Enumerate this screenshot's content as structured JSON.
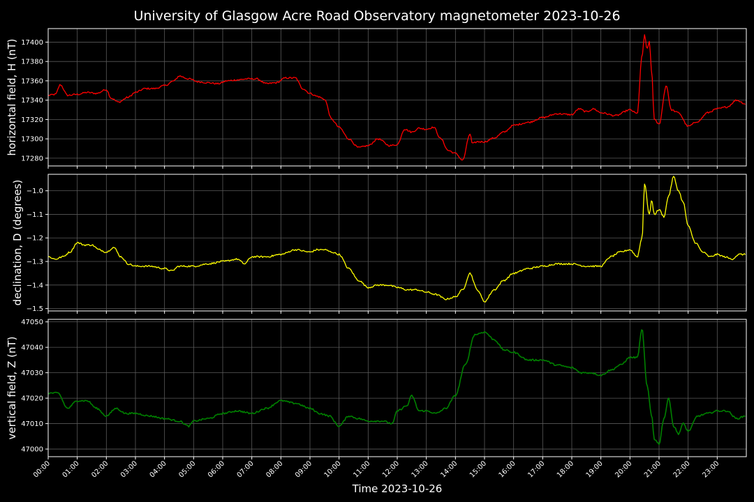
{
  "title": "University of Glasgow Acre Road Observatory magnetometer 2023-10-26",
  "xlabel": "Time 2023-10-26",
  "x_ticks": [
    "00:00",
    "01:00",
    "02:00",
    "03:00",
    "04:00",
    "05:00",
    "06:00",
    "07:00",
    "08:00",
    "09:00",
    "10:00",
    "11:00",
    "12:00",
    "13:00",
    "14:00",
    "15:00",
    "16:00",
    "17:00",
    "18:00",
    "19:00",
    "20:00",
    "21:00",
    "22:00",
    "23:00"
  ],
  "colors": {
    "background": "#000000",
    "grid": "#5a5a5a",
    "axes": "#ffffff",
    "H": "#ff0000",
    "D": "#ffff00",
    "Z": "#008000"
  },
  "chart_data": [
    {
      "type": "line",
      "ylabel": "horizontal field, H (nT)",
      "ylim": [
        17272,
        17414
      ],
      "yticks": [
        17280,
        17300,
        17320,
        17340,
        17360,
        17380,
        17400
      ],
      "ytick_labels": [
        "17280",
        "17300",
        "17320",
        "17340",
        "17360",
        "17380",
        "17400"
      ],
      "xlim": [
        "00:00",
        "24:00"
      ],
      "grid": true,
      "series": [
        {
          "color": "#ff0000",
          "x": [
            "00:00",
            "00:15",
            "00:25",
            "00:40",
            "01:00",
            "01:20",
            "01:40",
            "02:00",
            "02:10",
            "02:25",
            "02:45",
            "03:00",
            "03:20",
            "03:40",
            "04:00",
            "04:20",
            "04:30",
            "04:50",
            "05:10",
            "05:30",
            "05:50",
            "06:10",
            "06:30",
            "06:50",
            "07:10",
            "07:30",
            "07:50",
            "08:10",
            "08:30",
            "08:45",
            "09:00",
            "09:15",
            "09:30",
            "09:45",
            "10:00",
            "10:20",
            "10:40",
            "11:00",
            "11:20",
            "11:45",
            "12:00",
            "12:15",
            "12:30",
            "12:45",
            "13:00",
            "13:15",
            "13:30",
            "13:45",
            "14:00",
            "14:15",
            "14:30",
            "14:35",
            "14:45",
            "15:00",
            "15:20",
            "15:40",
            "16:00",
            "16:30",
            "17:00",
            "17:30",
            "18:00",
            "18:15",
            "18:30",
            "18:45",
            "19:00",
            "19:30",
            "20:00",
            "20:15",
            "20:25",
            "20:30",
            "20:35",
            "20:40",
            "20:45",
            "20:50",
            "21:00",
            "21:15",
            "21:25",
            "21:40",
            "22:00",
            "22:20",
            "22:40",
            "23:00",
            "23:20",
            "23:40",
            "23:59"
          ],
          "values": [
            17345,
            17346,
            17356,
            17345,
            17346,
            17348,
            17347,
            17351,
            17342,
            17338,
            17343,
            17348,
            17352,
            17352,
            17355,
            17360,
            17365,
            17362,
            17359,
            17358,
            17357,
            17360,
            17361,
            17362,
            17362,
            17357,
            17358,
            17363,
            17363,
            17352,
            17347,
            17344,
            17341,
            17320,
            17312,
            17300,
            17291,
            17293,
            17300,
            17293,
            17294,
            17310,
            17307,
            17311,
            17310,
            17312,
            17300,
            17288,
            17285,
            17278,
            17305,
            17295,
            17297,
            17297,
            17301,
            17307,
            17314,
            17317,
            17322,
            17326,
            17325,
            17331,
            17328,
            17331,
            17327,
            17324,
            17330,
            17326,
            17386,
            17407,
            17393,
            17400,
            17368,
            17320,
            17315,
            17355,
            17330,
            17327,
            17313,
            17318,
            17327,
            17331,
            17333,
            17340,
            17336
          ]
        }
      ]
    },
    {
      "type": "line",
      "ylabel": "declination, D (degrees)",
      "ylim": [
        -1.51,
        -0.93
      ],
      "yticks": [
        -1.5,
        -1.4,
        -1.3,
        -1.2,
        -1.1,
        -1.0
      ],
      "ytick_labels": [
        "−1.5",
        "−1.4",
        "−1.3",
        "−1.2",
        "−1.1",
        "−1.0"
      ],
      "xlim": [
        "00:00",
        "24:00"
      ],
      "grid": true,
      "series": [
        {
          "color": "#ffff00",
          "x": [
            "00:00",
            "00:15",
            "00:30",
            "00:45",
            "01:00",
            "01:15",
            "01:30",
            "01:45",
            "02:00",
            "02:15",
            "02:30",
            "02:45",
            "03:00",
            "03:30",
            "04:00",
            "04:15",
            "04:30",
            "05:00",
            "05:30",
            "06:00",
            "06:30",
            "06:45",
            "07:00",
            "07:30",
            "08:00",
            "08:30",
            "09:00",
            "09:15",
            "09:30",
            "09:45",
            "10:00",
            "10:20",
            "10:40",
            "11:00",
            "11:20",
            "11:40",
            "12:00",
            "12:20",
            "12:40",
            "13:00",
            "13:20",
            "13:40",
            "14:00",
            "14:15",
            "14:30",
            "14:45",
            "15:00",
            "15:20",
            "15:40",
            "16:00",
            "16:30",
            "17:00",
            "17:30",
            "18:00",
            "18:30",
            "19:00",
            "19:20",
            "19:40",
            "20:00",
            "20:15",
            "20:25",
            "20:30",
            "20:40",
            "20:45",
            "20:50",
            "21:00",
            "21:10",
            "21:20",
            "21:30",
            "21:40",
            "21:50",
            "22:00",
            "22:15",
            "22:30",
            "22:45",
            "23:00",
            "23:15",
            "23:30",
            "23:45",
            "23:59"
          ],
          "values": [
            -1.28,
            -1.29,
            -1.28,
            -1.26,
            -1.22,
            -1.23,
            -1.23,
            -1.25,
            -1.26,
            -1.24,
            -1.28,
            -1.31,
            -1.32,
            -1.32,
            -1.33,
            -1.34,
            -1.32,
            -1.32,
            -1.31,
            -1.3,
            -1.29,
            -1.31,
            -1.28,
            -1.28,
            -1.27,
            -1.25,
            -1.26,
            -1.25,
            -1.25,
            -1.26,
            -1.27,
            -1.33,
            -1.38,
            -1.41,
            -1.4,
            -1.4,
            -1.41,
            -1.42,
            -1.42,
            -1.43,
            -1.44,
            -1.46,
            -1.45,
            -1.42,
            -1.35,
            -1.42,
            -1.47,
            -1.42,
            -1.38,
            -1.35,
            -1.33,
            -1.32,
            -1.31,
            -1.31,
            -1.32,
            -1.32,
            -1.28,
            -1.26,
            -1.25,
            -1.28,
            -1.2,
            -0.97,
            -1.1,
            -1.04,
            -1.1,
            -1.08,
            -1.11,
            -1.02,
            -0.94,
            -1.0,
            -1.05,
            -1.15,
            -1.22,
            -1.26,
            -1.28,
            -1.27,
            -1.28,
            -1.29,
            -1.27,
            -1.27
          ]
        }
      ]
    },
    {
      "type": "line",
      "ylabel": "vertical field, Z (nT)",
      "ylim": [
        46997,
        47051
      ],
      "yticks": [
        47000,
        47010,
        47020,
        47030,
        47040,
        47050
      ],
      "ytick_labels": [
        "47000",
        "47010",
        "47020",
        "47030",
        "47040",
        "47050"
      ],
      "xlim": [
        "00:00",
        "24:00"
      ],
      "grid": true,
      "series": [
        {
          "color": "#008000",
          "x": [
            "00:00",
            "00:20",
            "00:40",
            "01:00",
            "01:20",
            "01:40",
            "02:00",
            "02:20",
            "02:40",
            "03:00",
            "03:30",
            "04:00",
            "04:30",
            "04:50",
            "05:00",
            "05:30",
            "06:00",
            "06:30",
            "07:00",
            "07:30",
            "08:00",
            "08:30",
            "09:00",
            "09:20",
            "09:40",
            "10:00",
            "10:20",
            "10:40",
            "11:00",
            "11:30",
            "11:50",
            "12:00",
            "12:20",
            "12:30",
            "12:45",
            "13:00",
            "13:20",
            "13:40",
            "14:00",
            "14:20",
            "14:40",
            "15:00",
            "15:20",
            "15:40",
            "16:00",
            "16:30",
            "17:00",
            "17:30",
            "18:00",
            "18:20",
            "18:40",
            "19:00",
            "19:20",
            "19:40",
            "20:00",
            "20:15",
            "20:25",
            "20:35",
            "20:45",
            "20:50",
            "21:00",
            "21:10",
            "21:20",
            "21:30",
            "21:40",
            "21:50",
            "22:00",
            "22:20",
            "22:40",
            "23:00",
            "23:20",
            "23:40",
            "23:59"
          ],
          "values": [
            47022,
            47022,
            47016,
            47019,
            47019,
            47016,
            47013,
            47016,
            47014,
            47014,
            47013,
            47012,
            47011,
            47009,
            47011,
            47012,
            47014,
            47015,
            47014,
            47016,
            47019,
            47018,
            47016,
            47014,
            47013,
            47009,
            47013,
            47012,
            47011,
            47011,
            47010,
            47015,
            47017,
            47021,
            47015,
            47015,
            47014,
            47016,
            47021,
            47033,
            47045,
            47046,
            47043,
            47039,
            47038,
            47035,
            47035,
            47033,
            47032,
            47030,
            47030,
            47029,
            47031,
            47033,
            47036,
            47036,
            47047,
            47025,
            47013,
            47004,
            47002,
            47012,
            47020,
            47009,
            47006,
            47010,
            47007,
            47013,
            47014,
            47015,
            47015,
            47012,
            47013
          ]
        }
      ]
    }
  ]
}
